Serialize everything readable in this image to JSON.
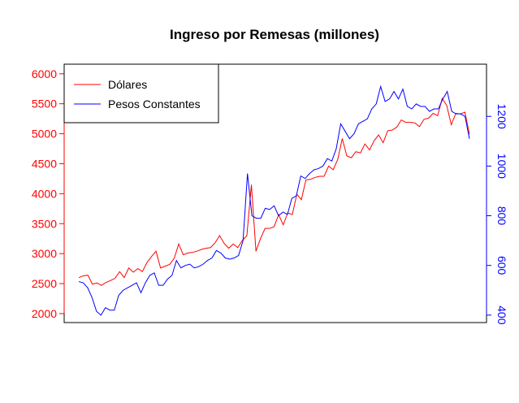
{
  "chart_data": {
    "type": "line",
    "title": "Ingreso por Remesas (millones)",
    "xlabel": "",
    "ylabel": "",
    "legend_position": "top-left",
    "grid": false,
    "y_left": {
      "ticks": [
        "2000",
        "2500",
        "3000",
        "3500",
        "4000",
        "4500",
        "5000",
        "5500",
        "6000"
      ],
      "range": [
        1850,
        6160
      ],
      "color": "#ff0000"
    },
    "y_right": {
      "ticks": [
        "400",
        "600",
        "800",
        "1000",
        "1200"
      ],
      "range": [
        370,
        1410
      ],
      "color": "#0000ff"
    },
    "series": [
      {
        "name": "Dólares",
        "axis": "left",
        "color": "#ff0000",
        "values": [
          2600,
          2630,
          2640,
          2490,
          2510,
          2470,
          2520,
          2550,
          2590,
          2700,
          2600,
          2760,
          2690,
          2750,
          2700,
          2850,
          2950,
          3040,
          2760,
          2790,
          2820,
          2920,
          3160,
          2980,
          3010,
          3020,
          3040,
          3070,
          3090,
          3100,
          3180,
          3300,
          3170,
          3090,
          3160,
          3100,
          3220,
          3300,
          4150,
          3040,
          3250,
          3420,
          3420,
          3450,
          3650,
          3480,
          3680,
          3650,
          3990,
          3900,
          4230,
          4240,
          4270,
          4290,
          4290,
          4460,
          4400,
          4570,
          4920,
          4630,
          4600,
          4700,
          4680,
          4830,
          4730,
          4880,
          4980,
          4850,
          5050,
          5060,
          5110,
          5230,
          5190,
          5190,
          5180,
          5120,
          5240,
          5260,
          5340,
          5300,
          5590,
          5470,
          5150,
          5340,
          5330,
          5360,
          4990
        ]
      },
      {
        "name": "Pesos Constantes",
        "axis": "right",
        "color": "#0000ff",
        "values": [
          535,
          530,
          510,
          470,
          415,
          400,
          430,
          420,
          420,
          480,
          500,
          510,
          520,
          530,
          490,
          530,
          560,
          570,
          520,
          520,
          545,
          560,
          620,
          590,
          600,
          605,
          590,
          595,
          605,
          620,
          630,
          660,
          650,
          630,
          625,
          630,
          640,
          700,
          970,
          800,
          790,
          790,
          830,
          825,
          840,
          800,
          815,
          805,
          870,
          880,
          960,
          950,
          970,
          985,
          990,
          1000,
          1030,
          1020,
          1070,
          1170,
          1140,
          1110,
          1130,
          1170,
          1180,
          1190,
          1230,
          1250,
          1320,
          1260,
          1270,
          1300,
          1270,
          1310,
          1240,
          1230,
          1250,
          1240,
          1240,
          1220,
          1230,
          1230,
          1270,
          1300,
          1220,
          1210,
          1210,
          1200,
          1110
        ]
      }
    ]
  }
}
